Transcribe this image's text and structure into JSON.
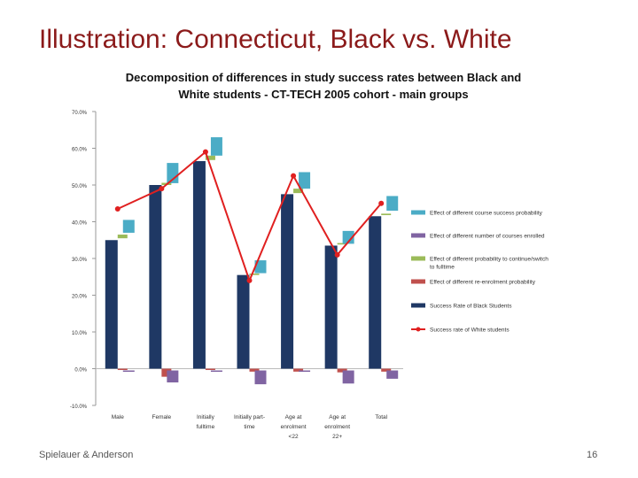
{
  "slide": {
    "title": "Illustration: Connecticut, Black vs. White",
    "footer_left": "Spielauer & Anderson",
    "page_number": "16"
  },
  "chart_data": {
    "type": "bar",
    "title_lines": [
      "Decomposition of differences in study success rates between Black and",
      "White students - CT-TECH 2005 cohort - main groups"
    ],
    "ylim": [
      -10,
      70
    ],
    "yticks": [
      "-10.0%",
      "0.0%",
      "10.0%",
      "20.0%",
      "30.0%",
      "40.0%",
      "50.0%",
      "60.0%",
      "70.0%"
    ],
    "ytick_values": [
      -10,
      0,
      10,
      20,
      30,
      40,
      50,
      60,
      70
    ],
    "categories": [
      [
        "Male"
      ],
      [
        "Female"
      ],
      [
        "Initially",
        "fulltime"
      ],
      [
        "Initially part-",
        "time"
      ],
      [
        "Age at",
        "enrolment",
        "<22"
      ],
      [
        "Age at",
        "enrolment",
        "22+"
      ],
      [
        "Total"
      ]
    ],
    "series": [
      {
        "name": "Effect of different course success probability",
        "color": "#4bacc6",
        "ranges": [
          [
            37,
            40.5
          ],
          [
            50.5,
            56
          ],
          [
            58,
            63
          ],
          [
            26,
            29.5
          ],
          [
            49,
            53.5
          ],
          [
            34,
            37.5
          ],
          [
            43,
            47
          ]
        ]
      },
      {
        "name": "Effect of different number of courses enrolled",
        "color": "#8064a2",
        "values": [
          -0.3,
          -3.5,
          -0.3,
          -4.0,
          -0.3,
          -3.8,
          -2.5
        ]
      },
      {
        "name": "Effect of different probability to continue/switch to fulltime",
        "color": "#9bbb59",
        "ranges": [
          [
            35.5,
            36.5
          ],
          [
            50,
            50.6
          ],
          [
            56.8,
            58
          ],
          [
            25.5,
            25.9
          ],
          [
            47.8,
            49
          ],
          [
            33.8,
            34.2
          ],
          [
            41.8,
            42.2
          ]
        ]
      },
      {
        "name": "Effect of different re-enrolment probability",
        "color": "#c0504d",
        "values": [
          -0.1,
          -2.2,
          -0.1,
          -0.8,
          -0.8,
          -1.0,
          -0.8
        ]
      },
      {
        "name": "Success Rate of Black Students",
        "color": "#1f3864",
        "values": [
          35,
          50,
          56.5,
          25.5,
          47.5,
          33.5,
          41.5
        ]
      },
      {
        "name": "Success rate of White students",
        "color": "#e02020",
        "values": [
          43.5,
          49,
          59,
          24,
          52.5,
          31,
          45
        ]
      }
    ],
    "grid": false,
    "legend_position": "right",
    "xlabel": "",
    "ylabel": ""
  }
}
